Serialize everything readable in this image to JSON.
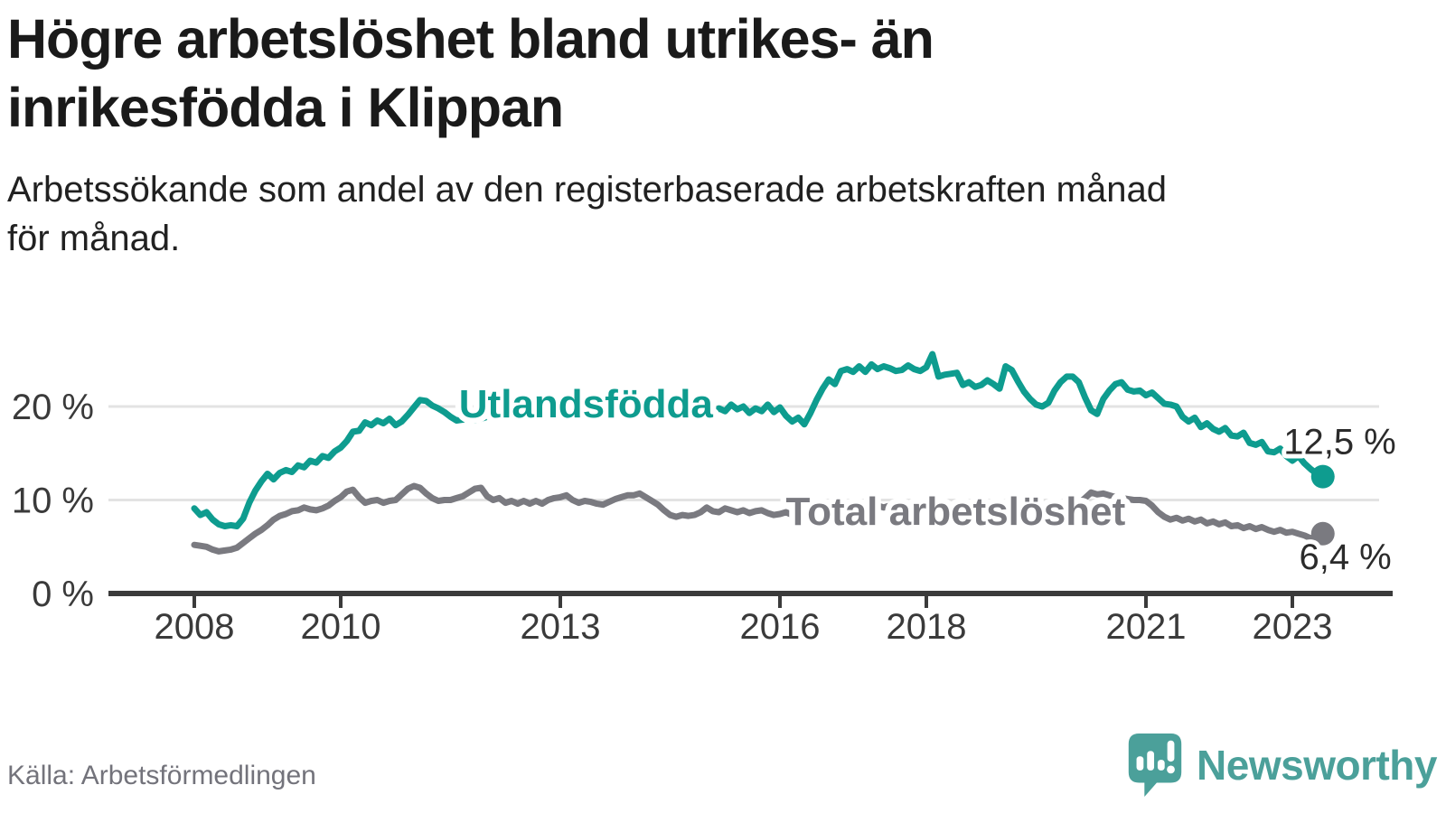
{
  "header": {
    "title": "Högre arbetslöshet bland utrikes- än\ninrikesfödda i Klippan",
    "subtitle": "Arbetssökande som andel av den registerbaserade arbetskraften månad\nför månad."
  },
  "footer": {
    "source": "Källa: Arbetsförmedlingen",
    "brand": "Newsworthy",
    "brand_color": "#4ba09a",
    "logo_icon": "speech-bubble-bar-chart-icon"
  },
  "chart_data": {
    "type": "line",
    "unit": "%",
    "frequency": "monthly",
    "x_start_year": 2008,
    "x_end": "2023-06",
    "ylim": [
      0,
      26
    ],
    "grid": "horizontal",
    "legend_position": "inline-labels",
    "x_ticks": [
      {
        "year": 2008,
        "label": "2008"
      },
      {
        "year": 2010,
        "label": "2010"
      },
      {
        "year": 2013,
        "label": "2013"
      },
      {
        "year": 2016,
        "label": "2016"
      },
      {
        "year": 2018,
        "label": "2018"
      },
      {
        "year": 2021,
        "label": "2021"
      },
      {
        "year": 2023,
        "label": "2023"
      }
    ],
    "y_ticks": [
      {
        "value": 0,
        "label": "0 %"
      },
      {
        "value": 10,
        "label": "10 %"
      },
      {
        "value": 20,
        "label": "20 %"
      }
    ],
    "series": [
      {
        "name": "Utlandsfödda",
        "color": "#0e9c8f",
        "end_label": "12,5 %",
        "last_value": 12.5,
        "label_anchor": {
          "year": 2013.35,
          "value": 20.3
        },
        "values": [
          9.1,
          8.4,
          8.7,
          7.9,
          7.4,
          7.2,
          7.3,
          7.2,
          8.0,
          9.7,
          11.0,
          12.0,
          12.8,
          12.2,
          12.9,
          13.2,
          13.0,
          13.7,
          13.5,
          14.2,
          14.0,
          14.7,
          14.5,
          15.2,
          15.6,
          16.3,
          17.3,
          17.4,
          18.3,
          18.0,
          18.5,
          18.2,
          18.7,
          18.0,
          18.4,
          19.1,
          19.9,
          20.7,
          20.6,
          20.1,
          19.8,
          19.4,
          18.9,
          18.5,
          18.6,
          18.8,
          18.5,
          18.7,
          18.9,
          19.1,
          18.8,
          19.0,
          18.7,
          18.9,
          19.2,
          19.0,
          19.3,
          19.1,
          19.4,
          19.2,
          19.4,
          19.2,
          19.0,
          19.3,
          19.1,
          19.4,
          19.2,
          19.5,
          19.3,
          19.1,
          19.4,
          19.6,
          19.3,
          19.5,
          19.7,
          19.4,
          19.6,
          19.3,
          19.5,
          19.8,
          19.6,
          19.9,
          19.7,
          20.0,
          20.3,
          19.4,
          19.8,
          19.5,
          20.2,
          19.7,
          20.0,
          19.3,
          19.8,
          19.5,
          20.2,
          19.4,
          19.9,
          19.0,
          18.4,
          18.8,
          18.1,
          19.3,
          20.7,
          21.9,
          22.9,
          22.4,
          23.8,
          24.0,
          23.7,
          24.3,
          23.7,
          24.5,
          24.0,
          24.3,
          24.1,
          23.8,
          23.9,
          24.4,
          24.0,
          23.8,
          24.2,
          25.6,
          23.2,
          23.4,
          23.5,
          23.6,
          22.3,
          22.6,
          22.1,
          22.3,
          22.8,
          22.4,
          21.9,
          24.3,
          23.9,
          22.7,
          21.6,
          20.8,
          20.2,
          20.0,
          20.4,
          21.7,
          22.6,
          23.2,
          23.2,
          22.6,
          21.0,
          19.6,
          19.2,
          20.8,
          21.7,
          22.4,
          22.6,
          21.8,
          21.6,
          21.7,
          21.2,
          21.5,
          20.9,
          20.3,
          20.2,
          20.0,
          18.9,
          18.4,
          18.8,
          17.8,
          18.2,
          17.6,
          17.3,
          17.7,
          16.9,
          16.8,
          17.2,
          16.1,
          15.9,
          16.2,
          15.2,
          15.1,
          15.5,
          14.7,
          14.2,
          14.7,
          13.9,
          13.3,
          12.8,
          12.5
        ]
      },
      {
        "name": "Total arbetslöshet",
        "color": "#7a7a80",
        "end_label": "6,4 %",
        "last_value": 6.4,
        "label_anchor": {
          "year": 2018.4,
          "value": 8.8
        },
        "values": [
          5.2,
          5.1,
          5.0,
          4.7,
          4.5,
          4.6,
          4.7,
          4.9,
          5.4,
          5.9,
          6.4,
          6.8,
          7.3,
          7.9,
          8.3,
          8.5,
          8.8,
          8.9,
          9.2,
          9.0,
          8.9,
          9.1,
          9.4,
          9.9,
          10.3,
          10.9,
          11.1,
          10.3,
          9.7,
          9.9,
          10.0,
          9.7,
          9.9,
          10.0,
          10.6,
          11.2,
          11.5,
          11.3,
          10.7,
          10.2,
          9.9,
          10.0,
          10.0,
          10.2,
          10.4,
          10.8,
          11.2,
          11.3,
          10.4,
          10.0,
          10.2,
          9.7,
          9.9,
          9.6,
          9.9,
          9.6,
          9.9,
          9.6,
          10.0,
          10.2,
          10.3,
          10.5,
          10.0,
          9.7,
          9.9,
          9.8,
          9.6,
          9.5,
          9.8,
          10.1,
          10.3,
          10.5,
          10.5,
          10.7,
          10.3,
          9.9,
          9.5,
          8.9,
          8.4,
          8.2,
          8.4,
          8.3,
          8.4,
          8.7,
          9.2,
          8.8,
          8.7,
          9.1,
          8.9,
          8.7,
          8.9,
          8.6,
          8.8,
          8.9,
          8.6,
          8.4,
          8.5,
          8.7,
          8.4,
          8.6,
          8.8,
          9.0,
          9.2,
          9.1,
          9.3,
          9.2,
          9.4,
          9.3,
          9.5,
          9.4,
          9.3,
          9.5,
          9.4,
          9.2,
          9.4,
          9.3,
          9.5,
          9.4,
          9.6,
          9.5,
          9.4,
          9.6,
          9.3,
          9.5,
          9.2,
          9.4,
          9.1,
          9.3,
          9.0,
          9.2,
          9.4,
          9.2,
          9.3,
          9.1,
          9.2,
          9.0,
          9.1,
          9.3,
          9.2,
          9.4,
          9.3,
          9.5,
          9.4,
          9.6,
          9.7,
          9.6,
          10.2,
          10.8,
          10.6,
          10.7,
          10.5,
          10.3,
          10.2,
          10.1,
          10.0,
          10.0,
          9.9,
          9.4,
          8.7,
          8.2,
          7.9,
          8.1,
          7.8,
          8.0,
          7.7,
          7.9,
          7.5,
          7.7,
          7.4,
          7.6,
          7.2,
          7.3,
          7.0,
          7.2,
          6.9,
          7.1,
          6.8,
          6.6,
          6.8,
          6.5,
          6.6,
          6.4,
          6.2,
          5.9,
          6.1,
          6.4
        ]
      }
    ]
  }
}
